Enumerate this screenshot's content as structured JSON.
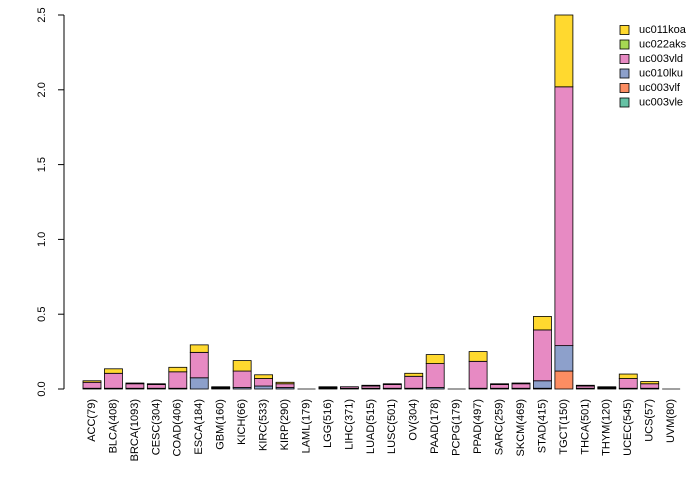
{
  "chart_data": {
    "type": "bar",
    "stacked": true,
    "title": "",
    "xlabel": "",
    "ylabel": "",
    "ylim": [
      0,
      2.5
    ],
    "yticks": [
      "0.0",
      "0.5",
      "1.0",
      "1.5",
      "2.0",
      "2.5"
    ],
    "ytick_values": [
      0,
      0.5,
      1.0,
      1.5,
      2.0,
      2.5
    ],
    "legend_position": "top-right",
    "categories": [
      "ACC(79)",
      "BLCA(408)",
      "BRCA(1093)",
      "CESC(304)",
      "COAD(406)",
      "ESCA(184)",
      "GBM(160)",
      "KICH(66)",
      "KIRC(533)",
      "KIRP(290)",
      "LAML(179)",
      "LGG(516)",
      "LIHC(371)",
      "LUAD(515)",
      "LUSC(501)",
      "OV(304)",
      "PAAD(178)",
      "PCPG(179)",
      "PPAD(497)",
      "SARC(259)",
      "SKCM(469)",
      "STAD(415)",
      "TGCT(150)",
      "THCA(501)",
      "THYM(120)",
      "UCEC(545)",
      "UCS(57)",
      "UVM(80)"
    ],
    "series": [
      {
        "name": "uc003vle",
        "color": "#66C2A5",
        "values": [
          0,
          0,
          0,
          0,
          0,
          0,
          0,
          0,
          0,
          0,
          0,
          0,
          0,
          0,
          0,
          0,
          0,
          0,
          0,
          0,
          0,
          0,
          0,
          0,
          0,
          0,
          0,
          0
        ]
      },
      {
        "name": "uc003vlf",
        "color": "#FC8D62",
        "values": [
          0,
          0,
          0,
          0,
          0,
          0,
          0,
          0,
          0,
          0,
          0,
          0,
          0,
          0,
          0,
          0,
          0,
          0,
          0,
          0,
          0,
          0.005,
          0.12,
          0,
          0,
          0,
          0,
          0
        ]
      },
      {
        "name": "uc010lku",
        "color": "#8DA0CB",
        "values": [
          0.005,
          0.005,
          0.005,
          0.005,
          0.005,
          0.075,
          0.005,
          0.01,
          0.02,
          0.01,
          0,
          0.005,
          0.005,
          0.005,
          0.005,
          0.005,
          0.01,
          0,
          0.005,
          0.005,
          0.005,
          0.05,
          0.17,
          0.005,
          0.005,
          0.005,
          0.005,
          0
        ]
      },
      {
        "name": "uc003vld",
        "color": "#E78AC3",
        "values": [
          0.04,
          0.1,
          0.03,
          0.025,
          0.11,
          0.17,
          0.005,
          0.11,
          0.05,
          0.025,
          0,
          0.005,
          0.01,
          0.015,
          0.025,
          0.08,
          0.16,
          0,
          0.18,
          0.025,
          0.03,
          0.34,
          1.73,
          0.015,
          0.005,
          0.065,
          0.03,
          0
        ]
      },
      {
        "name": "uc022aks",
        "color": "#A6D854",
        "values": [
          0,
          0,
          0,
          0,
          0,
          0,
          0,
          0,
          0,
          0,
          0,
          0,
          0,
          0,
          0,
          0,
          0,
          0,
          0,
          0,
          0,
          0,
          0,
          0,
          0,
          0,
          0,
          0
        ]
      },
      {
        "name": "uc011koa",
        "color": "#FFD92F",
        "values": [
          0.01,
          0.03,
          0.005,
          0.005,
          0.03,
          0.05,
          0.005,
          0.07,
          0.025,
          0.01,
          0,
          0.005,
          0,
          0.005,
          0.005,
          0.02,
          0.06,
          0,
          0.065,
          0.005,
          0.005,
          0.09,
          0.48,
          0.005,
          0.005,
          0.03,
          0.015,
          0
        ]
      }
    ],
    "legend_order": [
      "uc011koa",
      "uc022aks",
      "uc003vld",
      "uc010lku",
      "uc003vlf",
      "uc003vle"
    ]
  }
}
